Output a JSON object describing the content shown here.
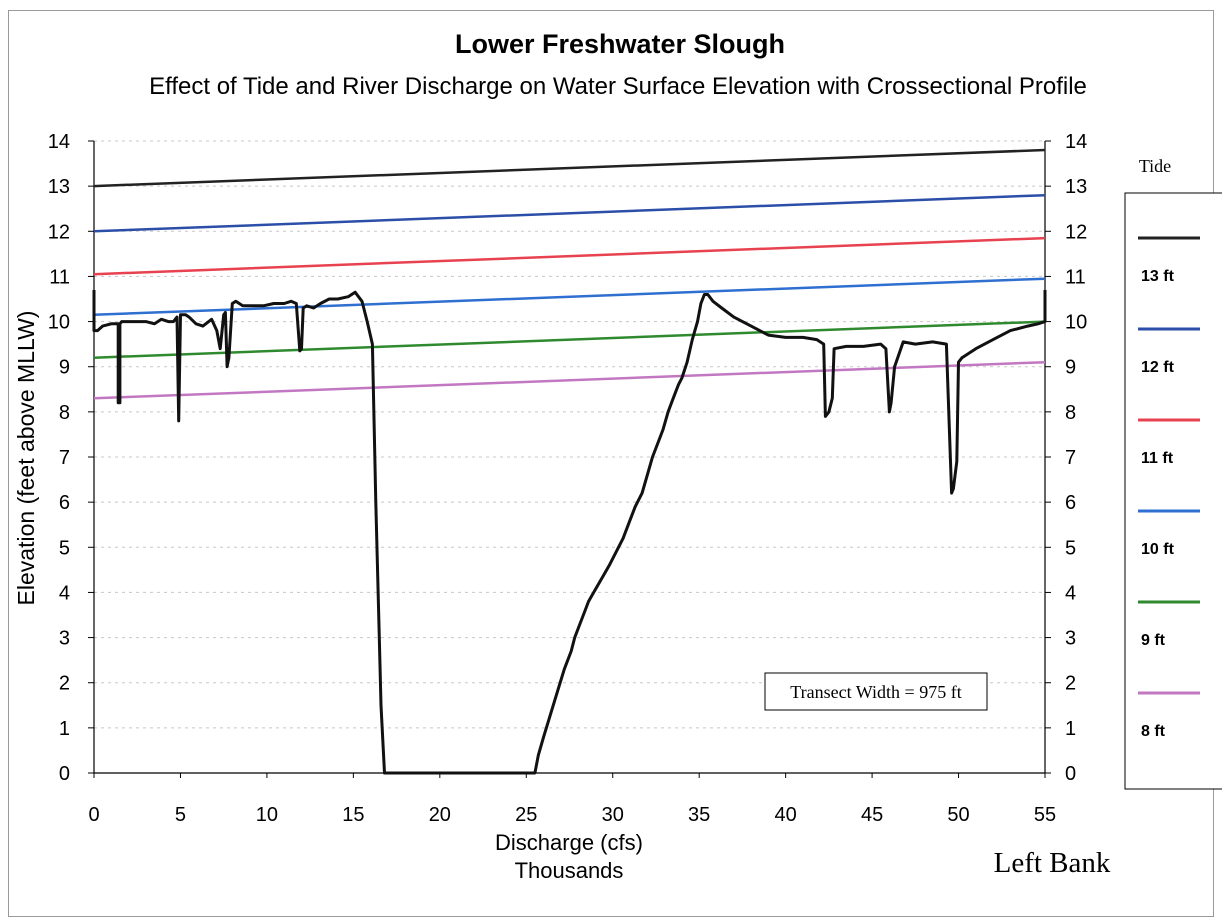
{
  "chart_data": {
    "type": "line",
    "title": "Lower Freshwater Slough",
    "subtitle": "Effect of Tide and River Discharge on Water Surface Elevation with Crossectional Profile",
    "xlabel": "Discharge (cfs)",
    "xlabel_units": "Thousands",
    "ylabel": "Elevation (feet above MLLW)",
    "xlim": [
      0,
      55
    ],
    "ylim": [
      0,
      14
    ],
    "x_ticks": [
      "0",
      "5",
      "10",
      "15",
      "20",
      "25",
      "30",
      "35",
      "40",
      "45",
      "50",
      "55"
    ],
    "y_ticks": [
      "0",
      "1",
      "2",
      "3",
      "4",
      "5",
      "6",
      "7",
      "8",
      "9",
      "10",
      "11",
      "12",
      "13",
      "14"
    ],
    "grid": true,
    "legend_title": "Tide",
    "legend_position": "right",
    "annotation": "Transect Width = 975 ft",
    "corner_label": "Left Bank",
    "series": [
      {
        "name": "13 ft",
        "color": "#222222",
        "x": [
          0,
          55
        ],
        "y": [
          13.0,
          13.8
        ]
      },
      {
        "name": "12 ft",
        "color": "#2b4ea8",
        "x": [
          0,
          55
        ],
        "y": [
          12.0,
          12.8
        ]
      },
      {
        "name": "11 ft",
        "color": "#e8414f",
        "x": [
          0,
          55
        ],
        "y": [
          11.05,
          11.85
        ]
      },
      {
        "name": "10 ft",
        "color": "#2e6fd0",
        "x": [
          0,
          55
        ],
        "y": [
          10.15,
          10.95
        ]
      },
      {
        "name": "9 ft",
        "color": "#2f8a2f",
        "x": [
          0,
          55
        ],
        "y": [
          9.2,
          10.0
        ]
      },
      {
        "name": "8 ft",
        "color": "#c277c2",
        "x": [
          0,
          55
        ],
        "y": [
          8.3,
          9.1
        ]
      }
    ],
    "profile": {
      "color": "#111111",
      "x": [
        0,
        0,
        0.2,
        0.5,
        1.0,
        1.4,
        1.4,
        1.5,
        1.5,
        1.6,
        2.0,
        2.5,
        3.0,
        3.5,
        3.9,
        4.3,
        4.6,
        4.8,
        4.9,
        5.0,
        5.3,
        5.5,
        5.9,
        6.3,
        6.8,
        7.1,
        7.3,
        7.5,
        7.6,
        7.7,
        7.8,
        8.0,
        8.2,
        8.6,
        9.2,
        9.8,
        10.4,
        11.0,
        11.4,
        11.7,
        11.9,
        12.0,
        12.1,
        12.3,
        12.7,
        13.1,
        13.6,
        14.1,
        14.7,
        15.1,
        15.5,
        15.8,
        16.1,
        16.3,
        16.5,
        16.6,
        16.8,
        25.5,
        25.7,
        26.0,
        26.4,
        26.8,
        27.2,
        27.6,
        27.8,
        28.1,
        28.4,
        28.6,
        28.9,
        29.2,
        29.5,
        29.8,
        30.2,
        30.6,
        31.0,
        31.3,
        31.7,
        32.0,
        32.3,
        32.6,
        32.9,
        33.2,
        33.5,
        33.8,
        34.0,
        34.3,
        34.6,
        34.9,
        35.1,
        35.3,
        35.5,
        35.8,
        36.3,
        37.0,
        38.0,
        39.0,
        40.0,
        41.0,
        41.8,
        42.2,
        42.3,
        42.5,
        42.7,
        42.8,
        43.5,
        44.5,
        45.5,
        45.8,
        46.0,
        46.1,
        46.3,
        46.8,
        47.5,
        48.5,
        49.3,
        49.6,
        49.7,
        49.9,
        50.0,
        50.2,
        51.0,
        52.0,
        53.0,
        54.0,
        54.6,
        55.0,
        55.0
      ],
      "y": [
        10.7,
        9.8,
        9.8,
        9.9,
        9.95,
        9.95,
        8.2,
        8.2,
        9.95,
        10.0,
        10.0,
        10.0,
        10.0,
        9.95,
        10.05,
        10.0,
        10.0,
        10.1,
        7.8,
        10.15,
        10.15,
        10.1,
        9.95,
        9.9,
        10.05,
        9.8,
        9.4,
        10.15,
        10.2,
        9.0,
        9.2,
        10.4,
        10.45,
        10.35,
        10.35,
        10.35,
        10.4,
        10.4,
        10.45,
        10.4,
        9.35,
        9.4,
        10.3,
        10.35,
        10.3,
        10.4,
        10.5,
        10.5,
        10.55,
        10.65,
        10.45,
        10.0,
        9.5,
        6.0,
        3.0,
        1.5,
        0.0,
        0.0,
        0.4,
        0.8,
        1.3,
        1.8,
        2.3,
        2.7,
        3.0,
        3.3,
        3.6,
        3.8,
        4.0,
        4.2,
        4.4,
        4.6,
        4.9,
        5.2,
        5.6,
        5.9,
        6.2,
        6.6,
        7.0,
        7.3,
        7.6,
        8.0,
        8.3,
        8.6,
        8.75,
        9.1,
        9.6,
        10.0,
        10.4,
        10.6,
        10.6,
        10.45,
        10.3,
        10.1,
        9.9,
        9.7,
        9.65,
        9.65,
        9.6,
        9.5,
        7.9,
        8.0,
        8.3,
        9.4,
        9.45,
        9.45,
        9.5,
        9.4,
        8.0,
        8.2,
        9.0,
        9.55,
        9.5,
        9.55,
        9.5,
        6.2,
        6.3,
        6.9,
        9.1,
        9.2,
        9.4,
        9.6,
        9.8,
        9.9,
        9.95,
        10.0,
        10.7
      ]
    }
  }
}
